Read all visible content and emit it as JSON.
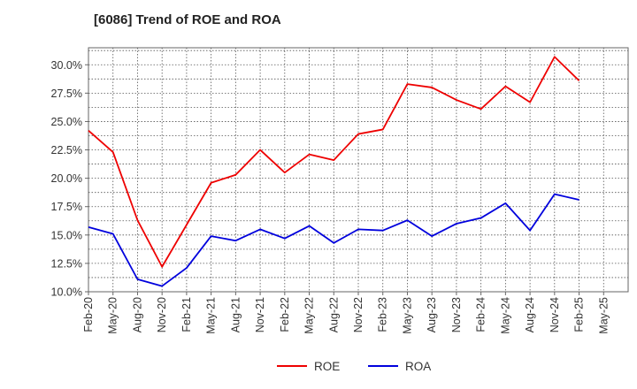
{
  "chart_data": {
    "type": "line",
    "title": "[6086]  Trend of ROE and ROA",
    "xlabel": "",
    "ylabel": "",
    "categories": [
      "Feb-20",
      "May-20",
      "Aug-20",
      "Nov-20",
      "Feb-21",
      "May-21",
      "Aug-21",
      "Nov-21",
      "Feb-22",
      "May-22",
      "Aug-22",
      "Nov-22",
      "Feb-23",
      "May-23",
      "Aug-23",
      "Nov-23",
      "Feb-24",
      "May-24",
      "Aug-24",
      "Nov-24",
      "Feb-25",
      "May-25"
    ],
    "ylim": [
      10.0,
      31.5
    ],
    "yticks": [
      10.0,
      12.5,
      15.0,
      17.5,
      20.0,
      22.5,
      25.0,
      27.5,
      30.0
    ],
    "ytick_labels": [
      "10.0%",
      "12.5%",
      "15.0%",
      "17.5%",
      "20.0%",
      "22.5%",
      "25.0%",
      "27.5%",
      "30.0%"
    ],
    "grid": true,
    "legend_position": "bottom-center",
    "series": [
      {
        "name": "ROE",
        "color": "#ee0000",
        "values": [
          24.2,
          22.3,
          16.3,
          12.2,
          15.9,
          19.6,
          20.3,
          22.5,
          20.5,
          22.1,
          21.6,
          23.9,
          24.3,
          28.3,
          28.0,
          26.9,
          26.1,
          28.1,
          26.7,
          30.7,
          28.6,
          null
        ]
      },
      {
        "name": "ROA",
        "color": "#0000dd",
        "values": [
          15.7,
          15.1,
          11.1,
          10.5,
          12.1,
          14.9,
          14.5,
          15.5,
          14.7,
          15.8,
          14.3,
          15.5,
          15.4,
          16.3,
          14.9,
          16.0,
          16.5,
          17.8,
          15.4,
          18.6,
          18.1,
          null
        ]
      }
    ]
  }
}
